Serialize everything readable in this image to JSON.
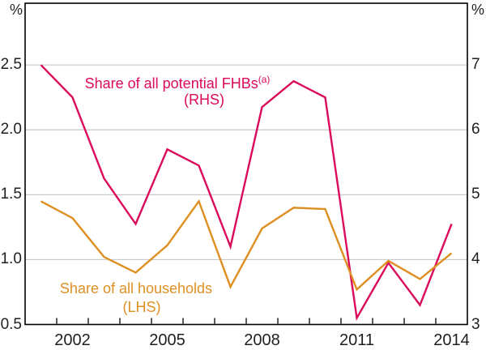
{
  "chart_data": {
    "type": "line",
    "title": "",
    "x_years": [
      2001,
      2002,
      2003,
      2004,
      2005,
      2006,
      2007,
      2008,
      2009,
      2010,
      2011,
      2012,
      2013,
      2014
    ],
    "series": [
      {
        "name": "Share of all potential FHBs (RHS)",
        "axis": "right",
        "color": "#db0a5b",
        "values": [
          7.0,
          6.5,
          5.25,
          4.55,
          5.7,
          5.45,
          4.2,
          6.35,
          6.75,
          6.5,
          3.1,
          3.95,
          3.3,
          4.55
        ]
      },
      {
        "name": "Share of all households (LHS)",
        "axis": "left",
        "color": "#de8f21",
        "values": [
          1.45,
          1.32,
          1.02,
          0.9,
          1.11,
          1.45,
          0.79,
          1.24,
          1.4,
          1.39,
          0.77,
          0.99,
          0.85,
          1.05
        ]
      }
    ],
    "left_axis": {
      "unit": "%",
      "tick_values": [
        2.5,
        2.0,
        1.5,
        1.0,
        0.5
      ],
      "tick_labels": [
        "2.5",
        "2.0",
        "1.5",
        "1.0",
        "0.5"
      ]
    },
    "right_axis": {
      "unit": "%",
      "tick_values": [
        7,
        6,
        5,
        4,
        3
      ],
      "tick_labels": [
        "7",
        "6",
        "5",
        "4",
        "3"
      ]
    },
    "x_axis": {
      "domain": [
        2001,
        2015
      ],
      "boundary_tick_years": [
        2002,
        2003,
        2004,
        2005,
        2006,
        2007,
        2008,
        2009,
        2010,
        2011,
        2012,
        2013,
        2014
      ],
      "label_years": [
        2002,
        2005,
        2008,
        2011,
        2014
      ],
      "labels": [
        "2002",
        "2005",
        "2008",
        "2011",
        "2014"
      ]
    },
    "grid": true,
    "legend_position": "inline-annotations",
    "colors": {
      "grid": "#c9c9c9",
      "frame": "#000000",
      "tick_text": "#1f1f1f"
    }
  },
  "annotations": {
    "fhb": {
      "line1": "Share of all potential FHBs",
      "sup": "(a)",
      "line2": "(RHS)"
    },
    "households": {
      "line1": "Share of all households",
      "line2": "(LHS)"
    }
  }
}
